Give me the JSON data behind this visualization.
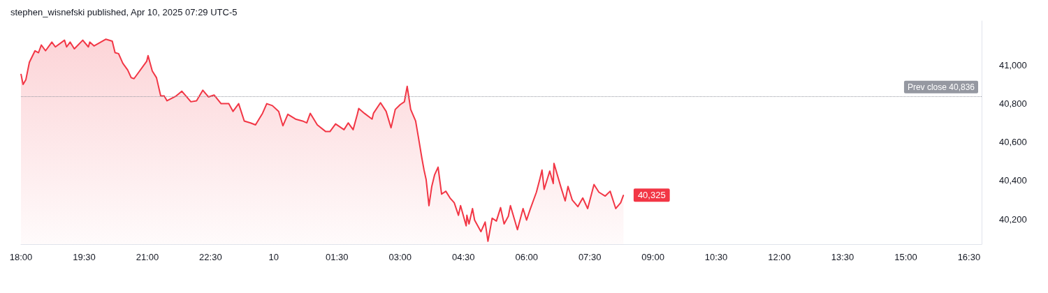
{
  "chart_data": {
    "type": "area",
    "title": "stephen_wisnefski published, Apr 10, 2025 07:29 UTC-5",
    "x": [
      "2025-04-09T18:00",
      "2025-04-09T18:03",
      "2025-04-09T18:07",
      "2025-04-09T18:12",
      "2025-04-09T18:20",
      "2025-04-09T18:25",
      "2025-04-09T18:29",
      "2025-04-09T18:35",
      "2025-04-09T18:44",
      "2025-04-09T18:49",
      "2025-04-09T19:02",
      "2025-04-09T19:05",
      "2025-04-09T19:10",
      "2025-04-09T19:16",
      "2025-04-09T19:28",
      "2025-04-09T19:36",
      "2025-04-09T19:38",
      "2025-04-09T19:44",
      "2025-04-09T20:01",
      "2025-04-09T20:10",
      "2025-04-09T20:14",
      "2025-04-09T20:19",
      "2025-04-09T20:25",
      "2025-04-09T20:32",
      "2025-04-09T20:37",
      "2025-04-09T20:41",
      "2025-04-09T20:47",
      "2025-04-09T20:59",
      "2025-04-09T21:01",
      "2025-04-09T21:07",
      "2025-04-09T21:13",
      "2025-04-09T21:19",
      "2025-04-09T21:24",
      "2025-04-09T21:28",
      "2025-04-09T21:41",
      "2025-04-09T21:49",
      "2025-04-09T22:02",
      "2025-04-09T22:10",
      "2025-04-09T22:19",
      "2025-04-09T22:27",
      "2025-04-09T22:35",
      "2025-04-09T22:45",
      "2025-04-09T22:56",
      "2025-04-09T23:02",
      "2025-04-09T23:10",
      "2025-04-09T23:18",
      "2025-04-09T23:27",
      "2025-04-09T23:34",
      "2025-04-09T23:44",
      "2025-04-09T23:50",
      "2025-04-09T23:58",
      "2025-04-10T00:07",
      "2025-04-10T00:13",
      "2025-04-10T00:20",
      "2025-04-10T00:31",
      "2025-04-10T00:41",
      "2025-04-10T00:47",
      "2025-04-10T00:52",
      "2025-04-10T01:02",
      "2025-04-10T01:14",
      "2025-04-10T01:20",
      "2025-04-10T01:28",
      "2025-04-10T01:40",
      "2025-04-10T01:46",
      "2025-04-10T01:53",
      "2025-04-10T01:59",
      "2025-04-10T02:01",
      "2025-04-10T02:09",
      "2025-04-10T02:20",
      "2025-04-10T02:22",
      "2025-04-10T02:32",
      "2025-04-10T02:40",
      "2025-04-10T02:47",
      "2025-04-10T02:53",
      "2025-04-10T03:00",
      "2025-04-10T03:06",
      "2025-04-10T03:10",
      "2025-04-10T03:15",
      "2025-04-10T03:22",
      "2025-04-10T03:26",
      "2025-04-10T03:31",
      "2025-04-10T03:34",
      "2025-04-10T03:37",
      "2025-04-10T03:41",
      "2025-04-10T03:45",
      "2025-04-10T03:49",
      "2025-04-10T03:54",
      "2025-04-10T03:59",
      "2025-04-10T04:05",
      "2025-04-10T04:11",
      "2025-04-10T04:17",
      "2025-04-10T04:23",
      "2025-04-10T04:26",
      "2025-04-10T04:34",
      "2025-04-10T04:35",
      "2025-04-10T04:38",
      "2025-04-10T04:43",
      "2025-04-10T04:46",
      "2025-04-10T04:55",
      "2025-04-10T05:01",
      "2025-04-10T05:05",
      "2025-04-10T05:11",
      "2025-04-10T05:17",
      "2025-04-10T05:23",
      "2025-04-10T05:28",
      "2025-04-10T05:34",
      "2025-04-10T05:37",
      "2025-04-10T05:47",
      "2025-04-10T05:55",
      "2025-04-10T06:00",
      "2025-04-10T06:05",
      "2025-04-10T06:14",
      "2025-04-10T06:19",
      "2025-04-10T06:22",
      "2025-04-10T06:25",
      "2025-04-10T06:33",
      "2025-04-10T06:38",
      "2025-04-10T06:39",
      "2025-04-10T06:49",
      "2025-04-10T06:55",
      "2025-04-10T06:59",
      "2025-04-10T07:05",
      "2025-04-10T07:13",
      "2025-04-10T07:20",
      "2025-04-10T07:27",
      "2025-04-10T07:36",
      "2025-04-10T07:43",
      "2025-04-10T07:52",
      "2025-04-10T07:59",
      "2025-04-10T08:07",
      "2025-04-10T08:14",
      "2025-04-10T08:18"
    ],
    "series": [
      {
        "color": "#f23645",
        "values": [
          40955,
          40900,
          40925,
          41015,
          41075,
          41065,
          41105,
          41075,
          41120,
          41095,
          41130,
          41095,
          41120,
          41085,
          41130,
          41095,
          41120,
          41100,
          41135,
          41125,
          41065,
          41060,
          41010,
          40975,
          40935,
          40930,
          40960,
          41020,
          41050,
          40970,
          40935,
          40840,
          40840,
          40815,
          40840,
          40865,
          40810,
          40815,
          40870,
          40835,
          40845,
          40800,
          40800,
          40760,
          40800,
          40710,
          40700,
          40690,
          40750,
          40800,
          40790,
          40760,
          40685,
          40745,
          40720,
          40710,
          40700,
          40750,
          40690,
          40655,
          40655,
          40695,
          40665,
          40700,
          40665,
          40745,
          40775,
          40750,
          40720,
          40750,
          40805,
          40760,
          40675,
          40770,
          40795,
          40810,
          40890,
          40770,
          40710,
          40625,
          40515,
          40455,
          40405,
          40270,
          40370,
          40430,
          40470,
          40330,
          40345,
          40310,
          40285,
          40220,
          40270,
          40165,
          40220,
          40175,
          40255,
          40195,
          40135,
          40185,
          40085,
          40205,
          40190,
          40260,
          40175,
          40215,
          40270,
          40145,
          40255,
          40195,
          40250,
          40340,
          40410,
          40455,
          40355,
          40450,
          40385,
          40490,
          40365,
          40295,
          40370,
          40300,
          40265,
          40310,
          40255,
          40380,
          40340,
          40320,
          40345,
          40255,
          40285,
          40325
        ]
      }
    ],
    "xlim": [
      "2025-04-09T18:00",
      "2025-04-10T16:48"
    ],
    "xticks": [
      {
        "value": "2025-04-09T18:00",
        "label": "18:00"
      },
      {
        "value": "2025-04-09T19:30",
        "label": "19:30"
      },
      {
        "value": "2025-04-09T21:00",
        "label": "21:00"
      },
      {
        "value": "2025-04-09T22:30",
        "label": "22:30"
      },
      {
        "value": "2025-04-10T00:00",
        "label": "10"
      },
      {
        "value": "2025-04-10T01:30",
        "label": "01:30"
      },
      {
        "value": "2025-04-10T03:00",
        "label": "03:00"
      },
      {
        "value": "2025-04-10T04:30",
        "label": "04:30"
      },
      {
        "value": "2025-04-10T06:00",
        "label": "06:00"
      },
      {
        "value": "2025-04-10T07:30",
        "label": "07:30"
      },
      {
        "value": "2025-04-10T09:00",
        "label": "09:00"
      },
      {
        "value": "2025-04-10T10:30",
        "label": "10:30"
      },
      {
        "value": "2025-04-10T12:00",
        "label": "12:00"
      },
      {
        "value": "2025-04-10T13:30",
        "label": "13:30"
      },
      {
        "value": "2025-04-10T15:00",
        "label": "15:00"
      },
      {
        "value": "2025-04-10T16:30",
        "label": "16:30"
      }
    ],
    "ylim": [
      40070,
      41230
    ],
    "yticks": [
      {
        "value": 40200,
        "label": "40,200"
      },
      {
        "value": 40400,
        "label": "40,400"
      },
      {
        "value": 40600,
        "label": "40,600"
      },
      {
        "value": 40800,
        "label": "40,800"
      },
      {
        "value": 41000,
        "label": "41,000"
      }
    ],
    "ref_lines": [
      {
        "axis": "y",
        "value": 40836,
        "label": "Prev close 40,836",
        "color": "#9598a1",
        "line_style": "dotted"
      }
    ],
    "annotations": [
      {
        "text": "40,325",
        "x": "2025-04-10T08:18",
        "y": 40325
      }
    ],
    "marker": "none",
    "grid": false
  }
}
